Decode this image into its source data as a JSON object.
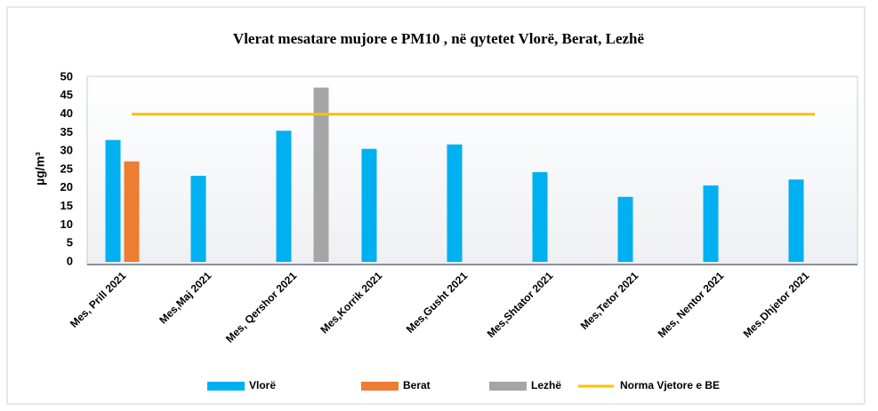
{
  "chart_data": {
    "type": "bar",
    "title": "Vlerat mesatare mujore e PM10 , në qytetet Vlorë, Berat, Lezhë",
    "y_label": "µg/m³",
    "categories": [
      "Mes, Prill 2021",
      "Mes,Maj 2021",
      "Mes, Qershor 2021",
      "Mes,Korrik 2021",
      "Mes,Gusht 2021",
      "Mes,Shtator 2021",
      "Mes,Tetor 2021",
      "Mes, Nentor 2021",
      "Mes,Dhjetor 2021"
    ],
    "series": [
      {
        "name": "Vlorë",
        "color": "#00b0f0",
        "values": [
          33,
          23.3,
          35.5,
          30.6,
          31.8,
          24.3,
          17.6,
          20.7,
          22.3
        ]
      },
      {
        "name": "Berat",
        "color": "#ed7d31",
        "values": [
          27.2,
          null,
          null,
          null,
          null,
          null,
          null,
          null,
          null
        ]
      },
      {
        "name": "Lezhë",
        "color": "#a5a5a5",
        "values": [
          null,
          null,
          47.2,
          null,
          null,
          null,
          null,
          null,
          null
        ]
      },
      {
        "name": "Norma Vjetore e BE",
        "color": "#ffc000",
        "type": "line",
        "values": [
          40,
          40,
          40,
          40,
          40,
          40,
          40,
          40,
          40
        ]
      }
    ],
    "ylim": [
      0,
      50
    ],
    "yticks": [
      0,
      5,
      10,
      15,
      20,
      25,
      30,
      35,
      40,
      45,
      50
    ],
    "legend": "bottom"
  }
}
